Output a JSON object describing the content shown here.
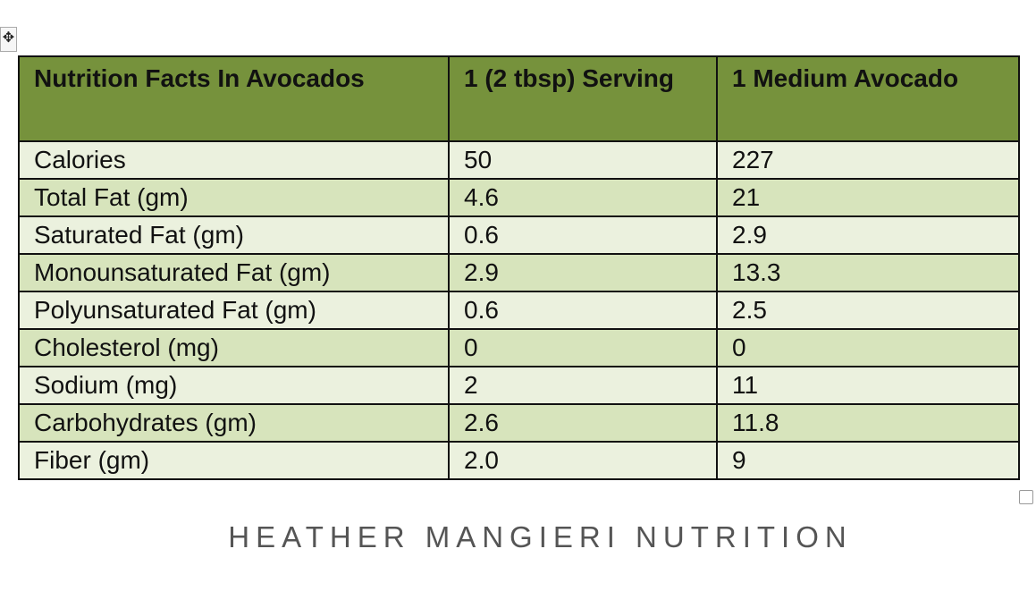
{
  "table": {
    "headers": [
      "Nutrition Facts In Avocados",
      "1 (2 tbsp) Serving",
      "1 Medium Avocado"
    ],
    "rows": [
      [
        "Calories",
        "50",
        "227"
      ],
      [
        "Total Fat (gm)",
        "4.6",
        "21"
      ],
      [
        "Saturated Fat (gm)",
        "0.6",
        "2.9"
      ],
      [
        "Monounsaturated Fat (gm)",
        "2.9",
        "13.3"
      ],
      [
        "Polyunsaturated Fat (gm)",
        "0.6",
        "2.5"
      ],
      [
        "Cholesterol (mg)",
        "0",
        "0"
      ],
      [
        "Sodium (mg)",
        "2",
        "11"
      ],
      [
        "Carbohydrates (gm)",
        "2.6",
        "11.8"
      ],
      [
        "Fiber (gm)",
        "2.0",
        "9"
      ]
    ]
  },
  "footer": "HEATHER MANGIERI NUTRITION",
  "colors": {
    "header": "#76923c",
    "row_light": "#ebf1de",
    "row_dark": "#d7e4bc"
  },
  "icons": {
    "move": "move-handle-icon",
    "resize": "resize-handle-icon"
  }
}
